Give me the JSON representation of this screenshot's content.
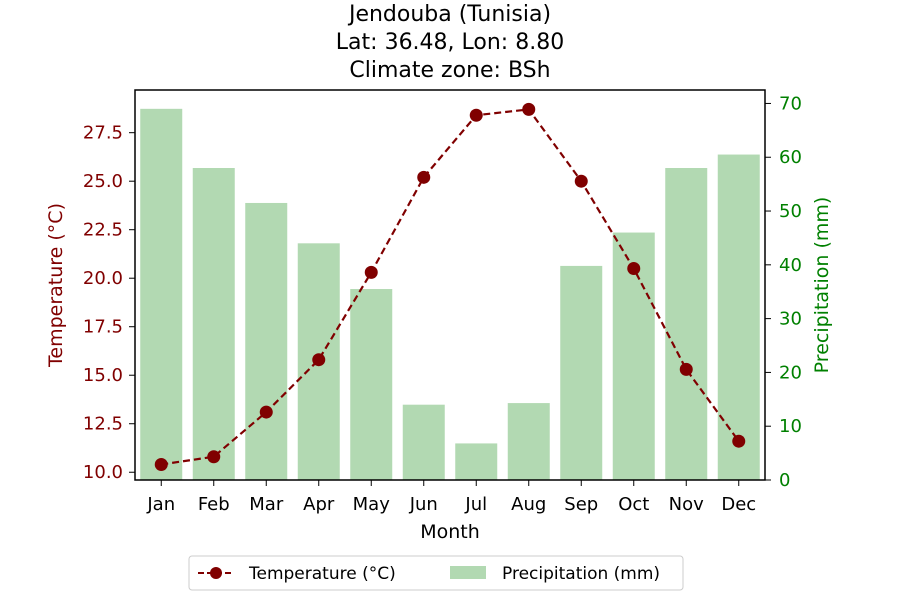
{
  "chart_data": {
    "type": "bar+line",
    "title_lines": [
      "Jendouba (Tunisia)",
      "Lat: 36.48, Lon: 8.80",
      "Climate zone: BSh"
    ],
    "xlabel": "Month",
    "ylabel_left": "Temperature (°C)",
    "ylabel_right": "Precipitation (mm)",
    "categories": [
      "Jan",
      "Feb",
      "Mar",
      "Apr",
      "May",
      "Jun",
      "Jul",
      "Aug",
      "Sep",
      "Oct",
      "Nov",
      "Dec"
    ],
    "series": [
      {
        "name": "Temperature (°C)",
        "type": "line",
        "axis": "left",
        "color": "#800000",
        "style": "dashed",
        "marker": "circle",
        "values": [
          10.4,
          10.8,
          13.1,
          15.8,
          20.3,
          25.2,
          28.4,
          28.7,
          25.0,
          20.5,
          15.3,
          11.6
        ]
      },
      {
        "name": "Precipitation (mm)",
        "type": "bar",
        "axis": "right",
        "color": "#b2d9b2",
        "values": [
          69.0,
          58.0,
          51.5,
          44.0,
          35.5,
          14.0,
          6.8,
          14.3,
          39.8,
          46.0,
          58.0,
          60.5
        ]
      }
    ],
    "yleft_lim": [
      9.6,
      29.7
    ],
    "yleft_ticks": [
      "10.0",
      "12.5",
      "15.0",
      "17.5",
      "20.0",
      "22.5",
      "25.0",
      "27.5"
    ],
    "yright_lim": [
      0,
      72.5
    ],
    "yright_ticks": [
      "0",
      "10",
      "20",
      "30",
      "40",
      "50",
      "60",
      "70"
    ],
    "left_axis_color": "#800000",
    "right_axis_color": "#008000",
    "legend_position": "bottom-center",
    "grid": false
  }
}
